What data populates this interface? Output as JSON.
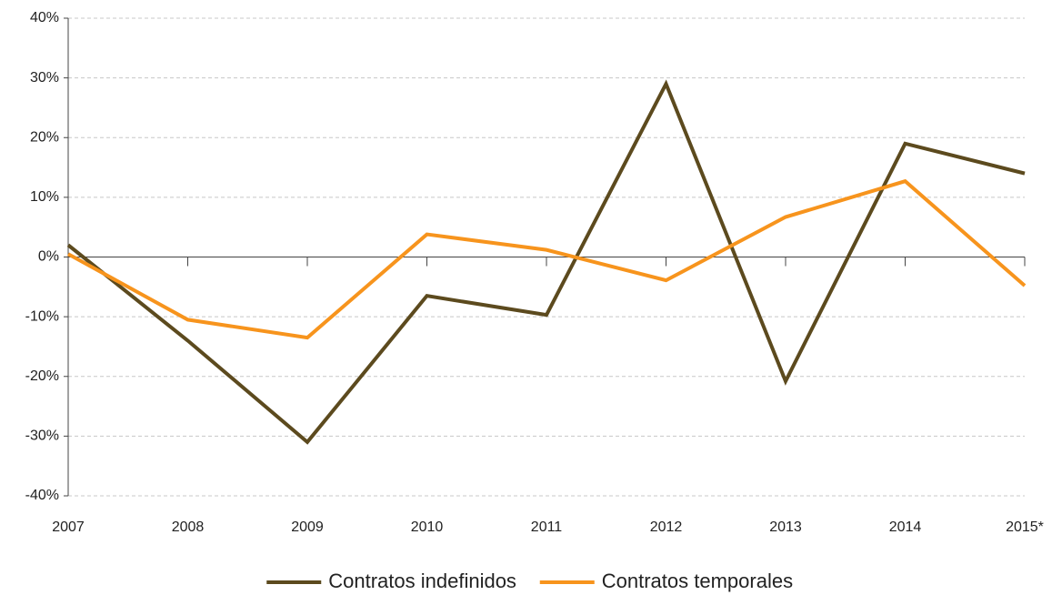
{
  "chart_data": {
    "type": "line",
    "categories": [
      "2007",
      "2008",
      "2009",
      "2010",
      "2011",
      "2012",
      "2013",
      "2014",
      "2015*"
    ],
    "series": [
      {
        "name": "Contratos indefinidos",
        "color": "#5c4a1e",
        "values": [
          2,
          -14,
          -31,
          -6.5,
          -9.7,
          29,
          -20.8,
          19,
          14
        ]
      },
      {
        "name": "Contratos temporales",
        "color": "#f7941d",
        "values": [
          0.5,
          -10.5,
          -13.5,
          3.8,
          1.2,
          -3.9,
          6.7,
          12.7,
          -4.8
        ]
      }
    ],
    "ylim": [
      -40,
      40
    ],
    "yticks": [
      {
        "value": -40,
        "label": "-40%"
      },
      {
        "value": -30,
        "label": "-30%"
      },
      {
        "value": -20,
        "label": "-20%"
      },
      {
        "value": -10,
        "label": "-10%"
      },
      {
        "value": 0,
        "label": "0%"
      },
      {
        "value": 10,
        "label": "10%"
      },
      {
        "value": 20,
        "label": "20%"
      },
      {
        "value": 30,
        "label": "30%"
      },
      {
        "value": 40,
        "label": "40%"
      }
    ],
    "grid": true,
    "legend": "bottom"
  }
}
